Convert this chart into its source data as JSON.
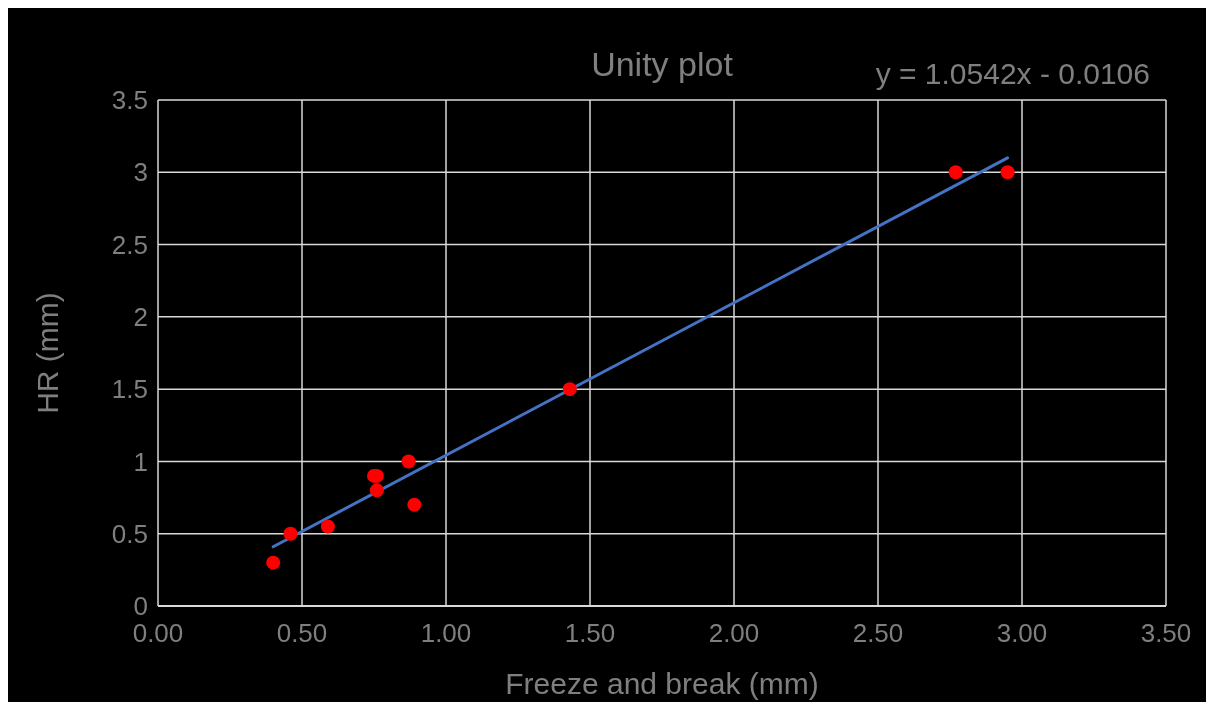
{
  "chart_data": {
    "type": "scatter",
    "title": "Unity plot",
    "xlabel": "Freeze and break (mm)",
    "ylabel": "HR (mm)",
    "annotations": [
      "y = 1.0542x - 0.0106"
    ],
    "series": [
      {
        "color": "#ff0000",
        "marker": "circle",
        "x": [
          0.4,
          0.46,
          0.59,
          0.75,
          0.76,
          0.76,
          0.87,
          0.89,
          1.43,
          2.77,
          2.95
        ],
        "values": [
          0.3,
          0.5,
          0.55,
          0.9,
          0.9,
          0.8,
          1.0,
          0.7,
          1.5,
          3.0,
          3.0
        ]
      },
      {
        "type": "line",
        "color": "#4472c4",
        "x": [
          0.4,
          2.95
        ],
        "values": [
          0.41,
          3.1
        ]
      }
    ],
    "xlim": [
      0,
      3.5
    ],
    "xticks": [
      {
        "value": 0,
        "label": "0.00"
      },
      {
        "value": 0.5,
        "label": "0.50"
      },
      {
        "value": 1,
        "label": "1.00"
      },
      {
        "value": 1.5,
        "label": "1.50"
      },
      {
        "value": 2,
        "label": "2.00"
      },
      {
        "value": 2.5,
        "label": "2.50"
      },
      {
        "value": 3,
        "label": "3.00"
      },
      {
        "value": 3.5,
        "label": "3.50"
      }
    ],
    "ylim": [
      0,
      3.5
    ],
    "yticks": [
      0,
      0.5,
      1,
      1.5,
      2,
      2.5,
      3,
      3.5
    ],
    "grid": true
  }
}
